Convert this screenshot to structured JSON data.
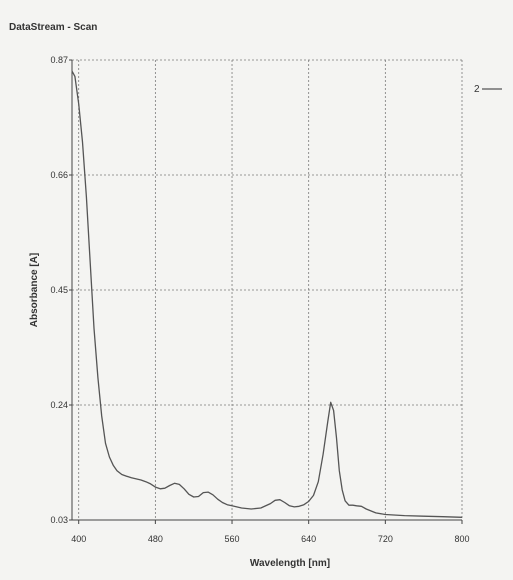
{
  "window": {
    "title": "DataStream - Scan"
  },
  "colors": {
    "curve": "#555555",
    "grid": "#7a7a7a",
    "axis": "#444444"
  },
  "chart_data": {
    "type": "line",
    "title": "",
    "xlabel": "Wavelength [nm]",
    "ylabel": "Absorbance [A]",
    "xlim": [
      393,
      800
    ],
    "ylim": [
      0.03,
      0.87
    ],
    "x_ticks": [
      400,
      480,
      560,
      640,
      720,
      800
    ],
    "x_tick_labels": [
      "400",
      "480",
      "560",
      "640",
      "720",
      "800"
    ],
    "y_ticks": [
      0.03,
      0.24,
      0.45,
      0.66,
      0.87
    ],
    "y_tick_labels": [
      "0.03",
      "0.24",
      "0.45",
      "0.66",
      "0.87"
    ],
    "grid": true,
    "legend": {
      "position": "top-right",
      "entries": [
        "2"
      ]
    },
    "series": [
      {
        "name": "2",
        "x": [
          393,
          396,
          400,
          404,
          408,
          412,
          416,
          420,
          424,
          428,
          432,
          436,
          440,
          445,
          450,
          455,
          460,
          465,
          470,
          475,
          480,
          485,
          490,
          495,
          500,
          505,
          510,
          515,
          520,
          525,
          530,
          535,
          540,
          545,
          550,
          555,
          560,
          570,
          580,
          590,
          600,
          605,
          610,
          615,
          620,
          625,
          630,
          635,
          640,
          645,
          650,
          655,
          660,
          663,
          666,
          669,
          672,
          675,
          678,
          682,
          686,
          690,
          695,
          700,
          710,
          720,
          740,
          760,
          780,
          800
        ],
        "y": [
          0.85,
          0.84,
          0.79,
          0.72,
          0.62,
          0.5,
          0.38,
          0.29,
          0.22,
          0.17,
          0.145,
          0.13,
          0.12,
          0.113,
          0.11,
          0.107,
          0.105,
          0.103,
          0.1,
          0.096,
          0.09,
          0.087,
          0.088,
          0.093,
          0.097,
          0.095,
          0.087,
          0.077,
          0.072,
          0.073,
          0.08,
          0.081,
          0.076,
          0.068,
          0.062,
          0.058,
          0.056,
          0.052,
          0.05,
          0.052,
          0.06,
          0.066,
          0.067,
          0.062,
          0.056,
          0.054,
          0.055,
          0.058,
          0.064,
          0.075,
          0.1,
          0.15,
          0.21,
          0.245,
          0.23,
          0.18,
          0.12,
          0.085,
          0.065,
          0.057,
          0.057,
          0.056,
          0.055,
          0.05,
          0.043,
          0.04,
          0.038,
          0.037,
          0.036,
          0.035
        ]
      }
    ]
  }
}
